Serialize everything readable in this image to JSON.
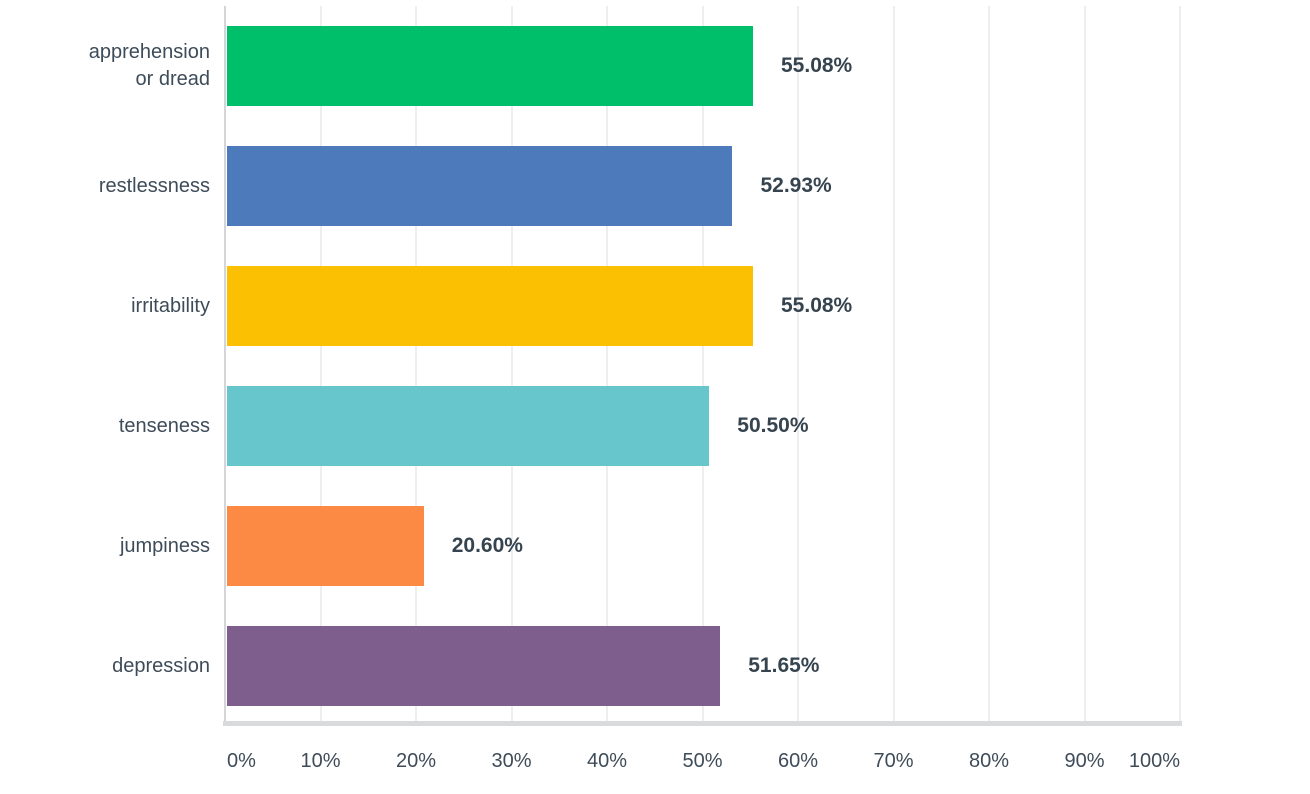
{
  "chart_data": {
    "type": "bar",
    "orientation": "horizontal",
    "title": "",
    "categories": [
      "apprehension or dread",
      "restlessness",
      "irritability",
      "tenseness",
      "jumpiness",
      "depression"
    ],
    "values": [
      55.08,
      52.93,
      55.08,
      50.5,
      20.6,
      51.65
    ],
    "value_labels": [
      "55.08%",
      "52.93%",
      "55.08%",
      "50.50%",
      "20.60%",
      "51.65%"
    ],
    "bar_colors": [
      "#00BF6B",
      "#4D7ABA",
      "#FBC002",
      "#66C6CC",
      "#FD8A44",
      "#7D5E8D"
    ],
    "xlabel": "",
    "ylabel": "",
    "xlim": [
      0,
      100
    ],
    "x_ticks": [
      "0%",
      "10%",
      "20%",
      "30%",
      "40%",
      "50%",
      "60%",
      "70%",
      "80%",
      "90%",
      "100%"
    ],
    "grid": true,
    "legend_position": "none",
    "gridline_color": "#EDEEF0",
    "axis_line_color": "#D8DADC",
    "text_color": "#3E4C59",
    "value_text_color": "#36444F"
  }
}
